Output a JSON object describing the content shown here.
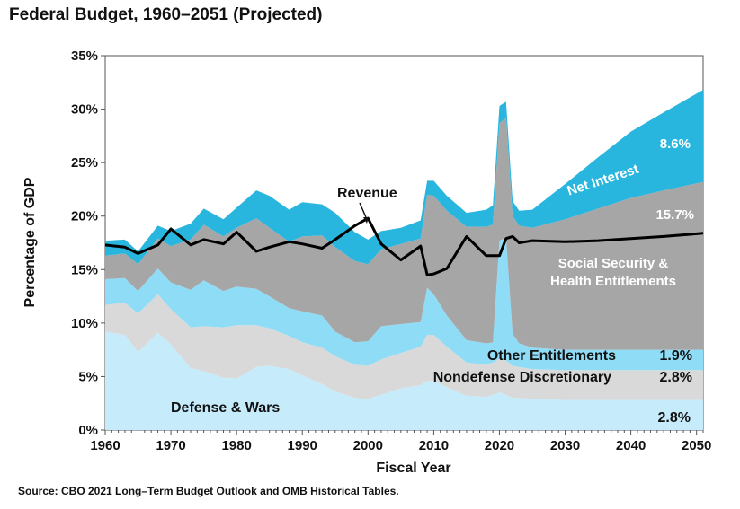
{
  "title": "Federal Budget, 1960–2051 (Projected)",
  "source": "Source: CBO 2021 Long–Term Budget Outlook and OMB Historical Tables.",
  "colors": {
    "defense": "#c6ebfa",
    "nondefense": "#d9d9d9",
    "other_entitlements": "#8fdcf7",
    "social_security_health": "#a6a6a6",
    "net_interest": "#29b6de",
    "revenue": "#000000"
  },
  "chart_data": {
    "type": "area",
    "title": "Federal Budget, 1960–2051 (Projected)",
    "xlabel": "Fiscal Year",
    "ylabel": "Percentage of GDP",
    "xlim": [
      1960,
      2051
    ],
    "ylim": [
      0,
      35
    ],
    "x_ticks": [
      "1960",
      "1970",
      "1980",
      "1990",
      "2000",
      "2010",
      "2020",
      "2030",
      "2040",
      "2050"
    ],
    "y_ticks": [
      "0%",
      "5%",
      "10%",
      "15%",
      "20%",
      "25%",
      "30%",
      "35%"
    ],
    "x": [
      1960,
      1963,
      1965,
      1968,
      1970,
      1973,
      1975,
      1978,
      1980,
      1983,
      1985,
      1988,
      1990,
      1993,
      1995,
      1998,
      2000,
      2002,
      2005,
      2008,
      2009,
      2010,
      2012,
      2015,
      2018,
      2019,
      2020,
      2021,
      2022,
      2023,
      2025,
      2030,
      2035,
      2040,
      2045,
      2051
    ],
    "series": [
      {
        "name": "Defense & Wars",
        "values": [
          9.2,
          8.9,
          7.3,
          9.1,
          8.0,
          5.8,
          5.5,
          4.9,
          4.8,
          5.9,
          6.0,
          5.7,
          5.1,
          4.3,
          3.6,
          3.0,
          2.9,
          3.3,
          3.9,
          4.2,
          4.6,
          4.6,
          4.0,
          3.2,
          3.1,
          3.3,
          3.5,
          3.3,
          3.0,
          3.0,
          2.9,
          2.8,
          2.8,
          2.8,
          2.8,
          2.8
        ]
      },
      {
        "name": "Nondefense Discretionary",
        "values": [
          2.5,
          3.0,
          3.6,
          3.6,
          3.3,
          3.8,
          4.2,
          4.7,
          5.0,
          3.9,
          3.5,
          3.1,
          3.1,
          3.4,
          3.3,
          3.1,
          3.1,
          3.3,
          3.3,
          3.6,
          4.3,
          4.3,
          3.8,
          3.1,
          3.0,
          3.0,
          3.2,
          3.2,
          3.0,
          2.9,
          2.8,
          2.8,
          2.8,
          2.8,
          2.8,
          2.8
        ]
      },
      {
        "name": "Other Entitlements",
        "values": [
          2.4,
          2.3,
          2.1,
          2.4,
          2.5,
          3.5,
          4.3,
          3.4,
          3.6,
          3.4,
          3.0,
          2.6,
          2.9,
          3.0,
          2.3,
          2.1,
          2.3,
          3.1,
          2.7,
          2.3,
          4.4,
          3.8,
          2.9,
          2.1,
          2.0,
          1.9,
          11.0,
          11.5,
          3.0,
          2.2,
          2.0,
          1.9,
          1.9,
          1.9,
          1.9,
          1.9
        ]
      },
      {
        "name": "Social Security & Health Entitlements",
        "values": [
          2.2,
          2.3,
          2.5,
          2.8,
          3.4,
          4.7,
          5.2,
          5.1,
          5.5,
          6.6,
          6.4,
          6.2,
          7.0,
          7.5,
          7.9,
          7.6,
          7.2,
          7.2,
          7.5,
          7.8,
          8.7,
          9.2,
          9.8,
          10.6,
          10.9,
          11.0,
          11.0,
          11.2,
          11.0,
          11.0,
          11.2,
          12.2,
          13.2,
          14.2,
          14.9,
          15.7
        ]
      },
      {
        "name": "Net Interest",
        "values": [
          1.4,
          1.3,
          1.2,
          1.2,
          1.4,
          1.5,
          1.5,
          1.6,
          1.9,
          2.6,
          3.0,
          3.0,
          3.2,
          2.9,
          3.2,
          2.7,
          2.3,
          1.7,
          1.5,
          1.7,
          1.3,
          1.4,
          1.4,
          1.3,
          1.6,
          1.8,
          1.6,
          1.5,
          1.4,
          1.4,
          1.7,
          3.3,
          4.8,
          6.2,
          7.3,
          8.6
        ]
      },
      {
        "name": "Revenue",
        "values": [
          17.3,
          17.1,
          16.5,
          17.3,
          18.8,
          17.3,
          17.8,
          17.4,
          18.5,
          16.7,
          17.1,
          17.6,
          17.4,
          17.0,
          17.8,
          19.1,
          19.8,
          17.4,
          15.9,
          17.2,
          14.5,
          14.6,
          15.1,
          18.1,
          16.3,
          16.3,
          16.3,
          17.9,
          18.1,
          17.5,
          17.7,
          17.6,
          17.7,
          17.9,
          18.1,
          18.4
        ]
      }
    ],
    "data_labels": {
      "net_interest_pct": "8.6%",
      "ss_health_pct": "15.7%",
      "other_ent_pct": "1.9%",
      "nondefense_pct": "2.8%",
      "defense_pct": "2.8%"
    },
    "area_labels": {
      "net_interest": "Net Interest",
      "ss_health_line1": "Social Security &",
      "ss_health_line2": "Health Entitlements",
      "other_entitlements": "Other Entitlements",
      "nondefense": "Nondefense Discretionary",
      "defense": "Defense & Wars",
      "revenue": "Revenue"
    },
    "grid": false,
    "legend": "none (labels placed on areas)"
  }
}
